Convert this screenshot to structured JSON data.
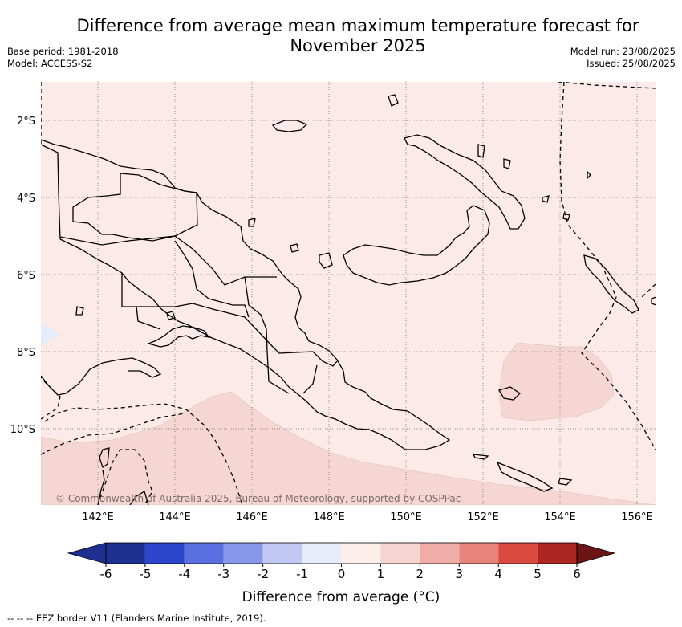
{
  "header": {
    "title_line1": "Difference from average mean maximum temperature forecast for",
    "title_line2": "November 2025",
    "base_period": "Base period: 1981-2018",
    "model": "Model: ACCESS-S2",
    "model_run": "Model run: 23/08/2025",
    "issued": "Issued: 25/08/2025"
  },
  "map": {
    "lat_labels": [
      "2°S",
      "4°S",
      "6°S",
      "8°S",
      "10°S"
    ],
    "lon_labels": [
      "142°E",
      "144°E",
      "146°E",
      "148°E",
      "150°E",
      "152°E",
      "154°E",
      "156°E"
    ],
    "copyright": "© Commonwealth of Australia 2025, Bureau of Meteorology, supported by COSPPac",
    "colors": {
      "background": "#fbeae8",
      "warm_1_2": "#f5d6d2",
      "cool_0_1": "#e4ecfb",
      "coastline": "#000000",
      "grid": "#6b6b6b"
    },
    "regions": [
      {
        "name": "0 to 1 °C warmer",
        "class": "0-1"
      },
      {
        "name": "1 to 2 °C warmer (south-west band and Solomon Sea patch)",
        "class": "1-2"
      },
      {
        "name": "-1 to 0 °C (small area west edge)",
        "class": "-1-0"
      }
    ]
  },
  "colorbar": {
    "ticks": [
      "-6",
      "-5",
      "-4",
      "-3",
      "-2",
      "-1",
      "0",
      "1",
      "2",
      "3",
      "4",
      "5",
      "6"
    ],
    "colors": [
      "#1e2f8f",
      "#2c47cc",
      "#5a70e0",
      "#8797ea",
      "#c0c8f3",
      "#e8ecfa",
      "#fdeeec",
      "#f6d4cf",
      "#f0aca6",
      "#e7847b",
      "#db4a3f",
      "#ac2622",
      "#6b1614"
    ],
    "title": "Difference from average (°C)"
  },
  "footnote": "-- -- -- EEZ border V11 (Flanders Marine Institute, 2019)."
}
